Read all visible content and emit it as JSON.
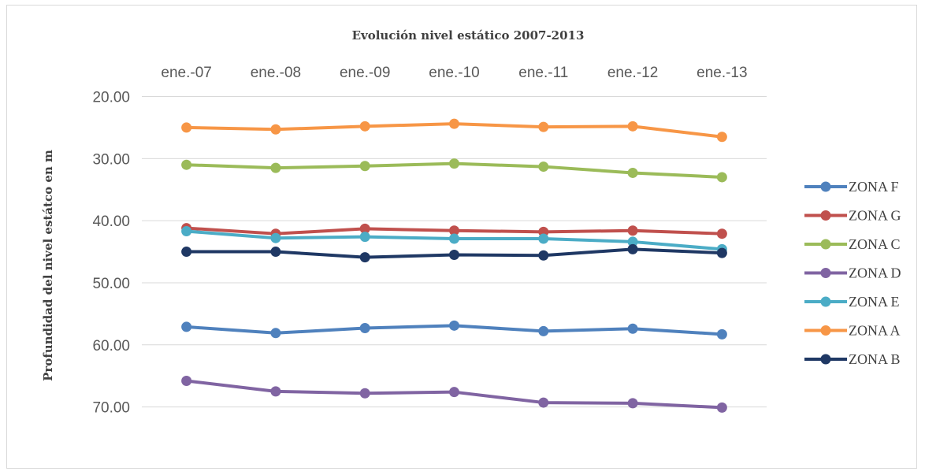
{
  "chart_data": {
    "type": "line",
    "title": "Evolución nivel estático 2007-2013",
    "xlabel": "",
    "ylabel": "Profundidad del nivel estátco en m",
    "categories": [
      "ene.-07",
      "ene.-08",
      "ene.-09",
      "ene.-10",
      "ene.-11",
      "ene.-12",
      "ene.-13"
    ],
    "y_ticks": [
      "20.00",
      "30.00",
      "40.00",
      "50.00",
      "60.00",
      "70.00"
    ],
    "ylim": [
      20,
      75
    ],
    "y_reversed": true,
    "x_axis_position": "top",
    "grid": true,
    "legend_position": "right",
    "series": [
      {
        "name": "ZONA F",
        "color": "#4f81bd",
        "values": [
          57.1,
          58.1,
          57.3,
          56.9,
          57.8,
          57.4,
          58.3
        ]
      },
      {
        "name": "ZONA G",
        "color": "#c0504d",
        "values": [
          41.2,
          42.1,
          41.3,
          41.6,
          41.8,
          41.6,
          42.1
        ]
      },
      {
        "name": "ZONA C",
        "color": "#9bbb59",
        "values": [
          31.0,
          31.5,
          31.2,
          30.8,
          31.3,
          32.3,
          33.0
        ]
      },
      {
        "name": "ZONA D",
        "color": "#8064a2",
        "values": [
          65.8,
          67.5,
          67.8,
          67.6,
          69.3,
          69.4,
          70.1
        ]
      },
      {
        "name": "ZONA E",
        "color": "#4bacc6",
        "values": [
          41.7,
          42.8,
          42.6,
          42.9,
          42.9,
          43.4,
          44.6
        ]
      },
      {
        "name": "ZONA A",
        "color": "#f79646",
        "values": [
          25.0,
          25.3,
          24.8,
          24.4,
          24.9,
          24.8,
          26.5
        ]
      },
      {
        "name": "ZONA B",
        "color": "#1f3864",
        "values": [
          45.0,
          45.0,
          45.9,
          45.5,
          45.6,
          44.6,
          45.2
        ]
      }
    ]
  }
}
